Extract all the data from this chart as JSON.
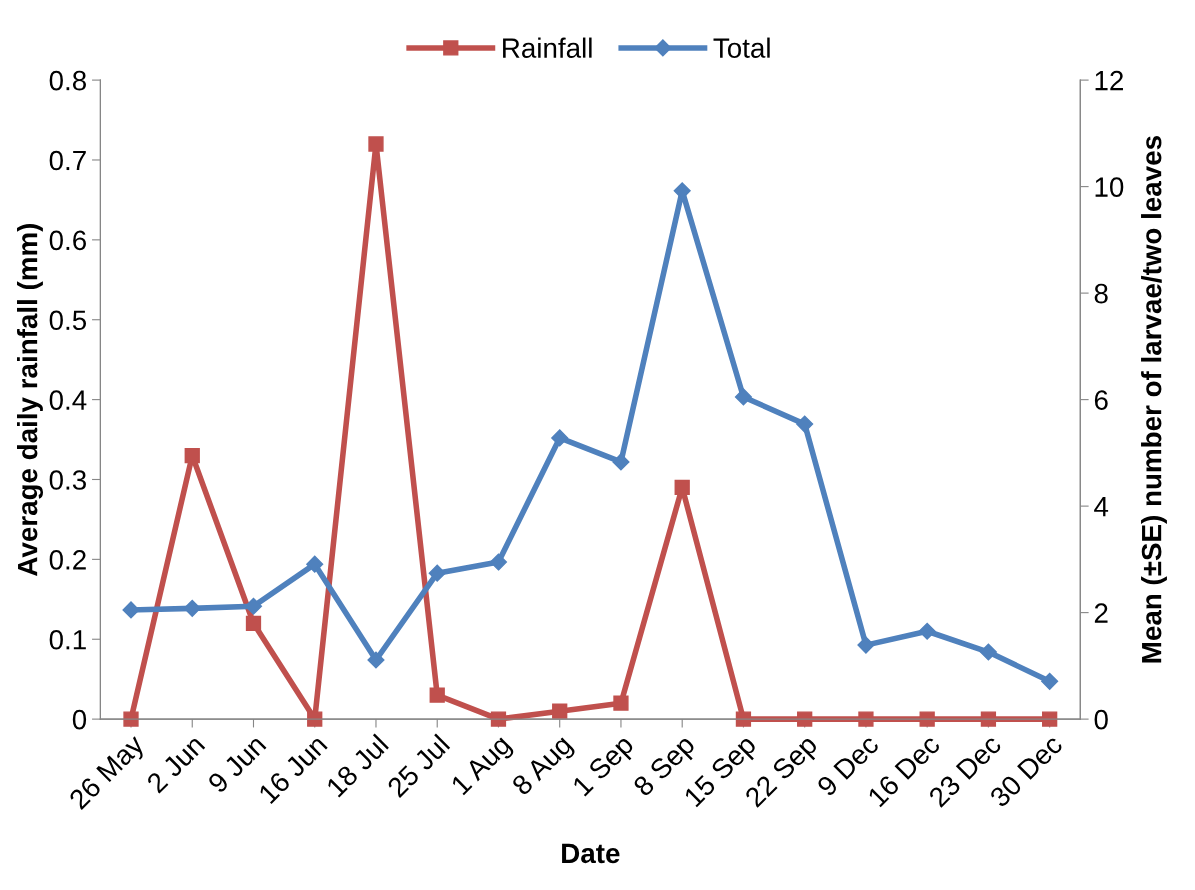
{
  "chart_data": {
    "type": "line",
    "xlabel": "Date",
    "ylabel": "Average daily rainfall (mm)",
    "y2label": "Mean (±SE) number of larvae/two leaves",
    "categories": [
      "26 May",
      "2 Jun",
      "9 Jun",
      "16 Jun",
      "18 Jul",
      "25 Jul",
      "1 Aug",
      "8 Aug",
      "1 Sep",
      "8 Sep",
      "15 Sep",
      "22 Sep",
      "9 Dec",
      "16 Dec",
      "23 Dec",
      "30 Dec"
    ],
    "series": [
      {
        "name": "Rainfall",
        "color": "#c0504d",
        "marker": "square",
        "values": [
          0,
          0.33,
          0.12,
          0,
          0.72,
          0.03,
          0,
          0.01,
          0.02,
          0.29,
          0,
          0,
          0,
          0,
          0,
          0
        ]
      },
      {
        "name": "Total",
        "color": "#4f81bd",
        "marker": "diamond",
        "axis": "y2",
        "values": [
          2.05,
          2.08,
          2.12,
          2.91,
          1.11,
          2.74,
          2.95,
          5.28,
          4.83,
          9.92,
          6.05,
          5.54,
          1.39,
          1.65,
          1.26,
          0.71
        ]
      }
    ],
    "ylim": [
      0,
      0.8
    ],
    "yticks": [
      0,
      0.1,
      0.2,
      0.3,
      0.4,
      0.5,
      0.6,
      0.7,
      0.8
    ],
    "y2lim": [
      0,
      12
    ],
    "y2ticks": [
      0,
      2,
      4,
      6,
      8,
      10,
      12
    ],
    "grid": false,
    "legend": "top",
    "line_style": "solid"
  }
}
